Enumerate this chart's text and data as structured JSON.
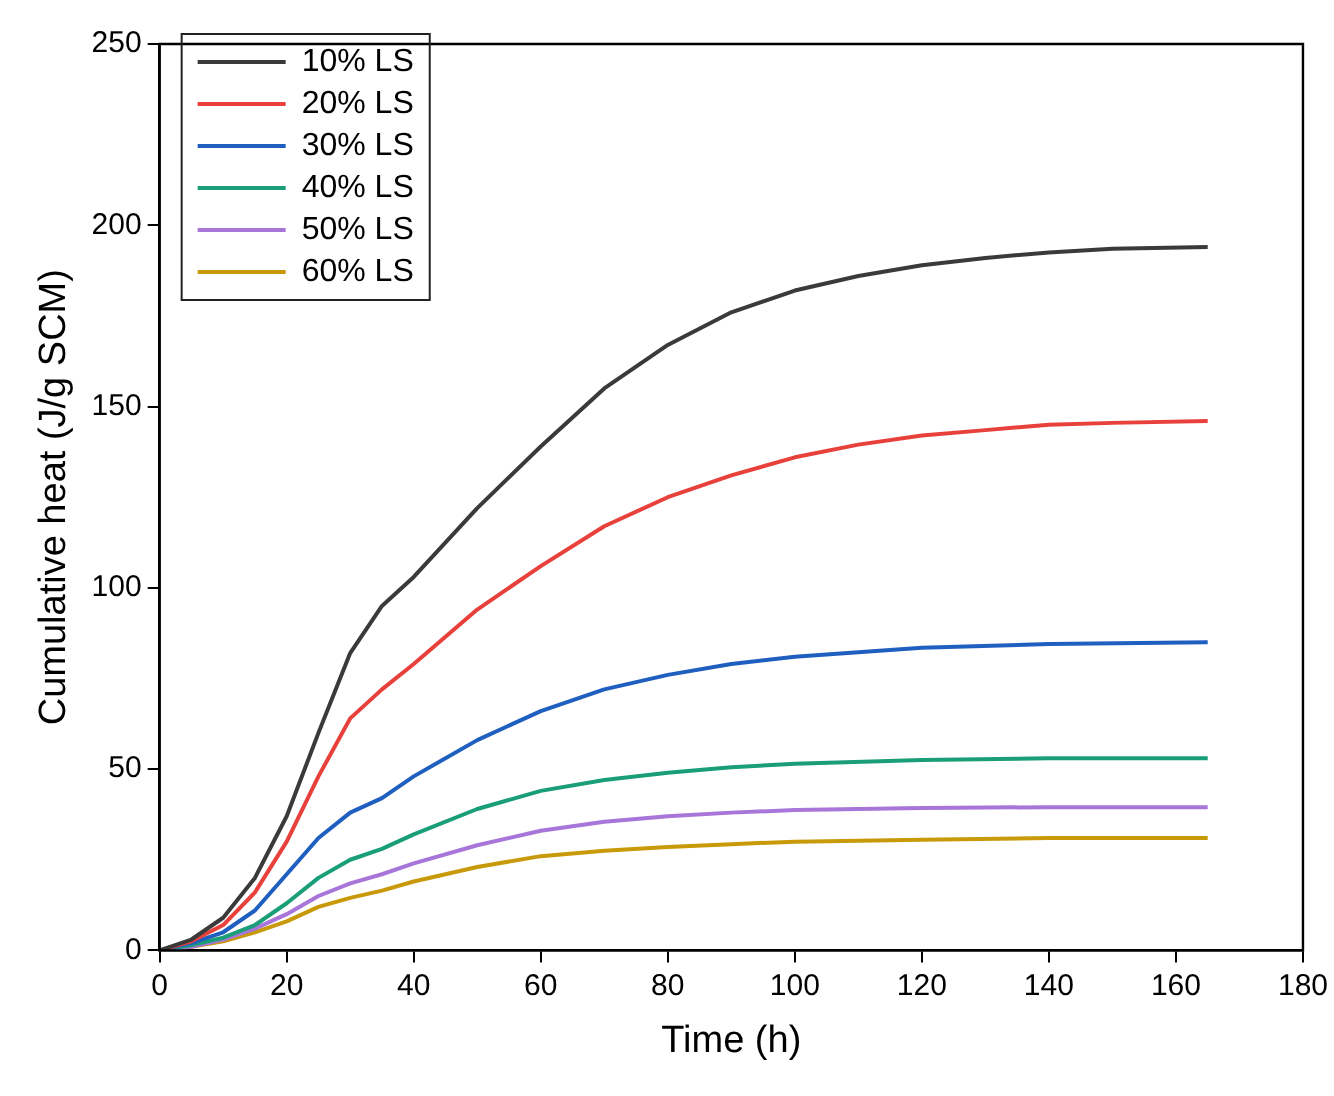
{
  "chart_data": {
    "type": "line",
    "xlabel": "Time (h)",
    "ylabel": "Cumulative heat (J/g SCM)",
    "xlim": [
      0,
      180
    ],
    "xticks": [
      0,
      20,
      40,
      60,
      80,
      100,
      120,
      140,
      160,
      180
    ],
    "ylim": [
      0,
      250
    ],
    "yticks": [
      0,
      50,
      100,
      150,
      200,
      250
    ],
    "grid": false,
    "legend": "top left",
    "marker": "none",
    "line_style": "solid",
    "series": [
      {
        "name": "10% LS",
        "color": "#3a3a3a",
        "x": [
          0,
          5,
          10,
          15,
          20,
          25,
          30,
          35,
          40,
          50,
          60,
          70,
          80,
          90,
          100,
          110,
          120,
          130,
          140,
          150,
          165
        ],
        "values": [
          0,
          3,
          9,
          20,
          37,
          60,
          82,
          95,
          103,
          122,
          139,
          155,
          167,
          176,
          182,
          186,
          189,
          191,
          192.5,
          193.5,
          194
        ]
      },
      {
        "name": "20% LS",
        "color": "#e8413c",
        "x": [
          0,
          5,
          10,
          15,
          20,
          25,
          30,
          35,
          40,
          50,
          60,
          70,
          80,
          90,
          100,
          110,
          120,
          130,
          140,
          150,
          165
        ],
        "values": [
          0,
          2.5,
          7,
          16,
          30,
          48,
          64,
          72,
          79,
          94,
          106,
          117,
          125,
          131,
          136,
          139.5,
          142,
          143.5,
          145,
          145.5,
          146
        ]
      },
      {
        "name": "30% LS",
        "color": "#1f5fbf",
        "x": [
          0,
          5,
          10,
          15,
          20,
          25,
          30,
          35,
          40,
          50,
          60,
          70,
          80,
          90,
          100,
          120,
          140,
          165
        ],
        "values": [
          0,
          2,
          5,
          11,
          21,
          31,
          38,
          42,
          48,
          58,
          66,
          72,
          76,
          79,
          81,
          83.5,
          84.5,
          85
        ]
      },
      {
        "name": "40% LS",
        "color": "#1a9e77",
        "x": [
          0,
          5,
          10,
          15,
          20,
          25,
          30,
          35,
          40,
          50,
          60,
          70,
          80,
          90,
          100,
          120,
          140,
          165
        ],
        "values": [
          0,
          1.5,
          3.5,
          7,
          13,
          20,
          25,
          28,
          32,
          39,
          44,
          47,
          49,
          50.5,
          51.5,
          52.5,
          53,
          53
        ]
      },
      {
        "name": "50% LS",
        "color": "#a875d8",
        "x": [
          0,
          5,
          10,
          15,
          20,
          25,
          30,
          35,
          40,
          50,
          60,
          70,
          80,
          90,
          100,
          120,
          140,
          165
        ],
        "values": [
          0,
          1,
          3,
          6,
          10,
          15,
          18.5,
          21,
          24,
          29,
          33,
          35.5,
          37,
          38,
          38.7,
          39.3,
          39.5,
          39.5
        ]
      },
      {
        "name": "60% LS",
        "color": "#c89a0a",
        "x": [
          0,
          5,
          10,
          15,
          20,
          25,
          30,
          35,
          40,
          50,
          60,
          70,
          80,
          90,
          100,
          120,
          140,
          165
        ],
        "values": [
          0,
          1,
          2.5,
          5,
          8,
          12,
          14.5,
          16.5,
          19,
          23,
          26,
          27.5,
          28.5,
          29.3,
          30,
          30.5,
          31,
          31
        ]
      }
    ]
  }
}
